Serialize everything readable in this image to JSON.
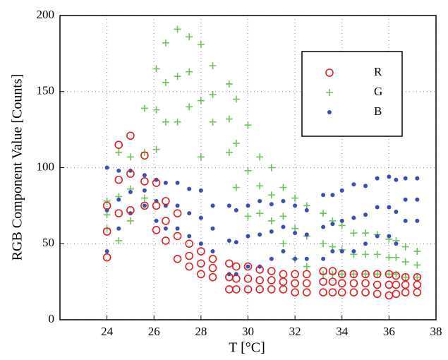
{
  "chart_data": {
    "type": "scatter",
    "x_label": "T [°C]",
    "y_label": "RGB Component Value [Counts]",
    "xlim": [
      22,
      38
    ],
    "xticks": [
      24,
      26,
      28,
      30,
      32,
      34,
      36,
      38
    ],
    "ylim": [
      0,
      200
    ],
    "yticks": [
      0,
      50,
      100,
      150,
      200
    ],
    "grid": true,
    "legend": "upper right",
    "x": [
      24,
      24,
      24,
      24.5,
      24.5,
      24.5,
      25,
      25,
      25,
      25.6,
      25.6,
      25.6,
      26.1,
      26.1,
      26.1,
      26.5,
      26.5,
      26.5,
      27,
      27,
      27,
      27.5,
      27.5,
      27.5,
      28,
      28,
      28,
      28.5,
      28.5,
      28.5,
      29.2,
      29.2,
      29.2,
      29.5,
      29.5,
      29.5,
      30,
      30,
      30,
      30.5,
      30.5,
      30.5,
      31,
      31,
      31,
      31.5,
      31.5,
      31.5,
      32,
      32,
      32,
      32.5,
      32.5,
      32.5,
      33.2,
      33.2,
      33.2,
      33.6,
      33.6,
      33.6,
      34,
      34,
      34,
      34.5,
      34.5,
      34.5,
      35,
      35,
      35,
      35.5,
      35.5,
      35.5,
      36,
      36,
      36,
      36.3,
      36.3,
      36.3,
      36.7,
      36.7,
      36.7,
      37.2,
      37.2,
      37.2
    ],
    "series": [
      {
        "name": "R",
        "color": "#e02020",
        "marker": "circle",
        "values": [
          41,
          58,
          75,
          70,
          92,
          115,
          72,
          96,
          121,
          75,
          91,
          108,
          59,
          75,
          90,
          52,
          65,
          78,
          40,
          55,
          70,
          35,
          42,
          50,
          30,
          37,
          45,
          28,
          34,
          40,
          20,
          28,
          37,
          20,
          27,
          35,
          20,
          27,
          35,
          20,
          26,
          33,
          20,
          26,
          32,
          20,
          25,
          30,
          18,
          24,
          30,
          18,
          24,
          30,
          18,
          25,
          32,
          18,
          25,
          32,
          18,
          24,
          30,
          18,
          24,
          30,
          18,
          24,
          30,
          17,
          23,
          30,
          16,
          23,
          30,
          17,
          23,
          29,
          18,
          23,
          28,
          18,
          23,
          28
        ]
      },
      {
        "name": "G",
        "color": "#6cc45a",
        "marker": "plus",
        "values": [
          60,
          69,
          78,
          52,
          81,
          110,
          65,
          86,
          107,
          80,
          110,
          139,
          112,
          138,
          165,
          130,
          156,
          182,
          130,
          160,
          191,
          140,
          163,
          186,
          107,
          144,
          181,
          130,
          148,
          167,
          110,
          132,
          155,
          87,
          116,
          145,
          68,
          98,
          128,
          70,
          88,
          107,
          65,
          82,
          100,
          50,
          68,
          87,
          40,
          60,
          80,
          35,
          55,
          75,
          30,
          50,
          70,
          30,
          48,
          65,
          30,
          46,
          62,
          30,
          43,
          57,
          30,
          43,
          57,
          30,
          43,
          56,
          30,
          41,
          53,
          30,
          41,
          52,
          28,
          38,
          48,
          28,
          36,
          45
        ]
      },
      {
        "name": "B",
        "color": "#3a4fb4",
        "marker": "dot",
        "values": [
          45,
          72,
          100,
          60,
          79,
          98,
          70,
          84,
          98,
          75,
          85,
          95,
          65,
          78,
          92,
          60,
          75,
          90,
          60,
          75,
          90,
          55,
          70,
          86,
          50,
          67,
          85,
          45,
          60,
          75,
          30,
          52,
          75,
          30,
          51,
          72,
          35,
          55,
          75,
          35,
          56,
          78,
          40,
          58,
          76,
          45,
          61,
          78,
          40,
          57,
          75,
          40,
          56,
          72,
          40,
          61,
          82,
          45,
          63,
          82,
          45,
          65,
          85,
          45,
          67,
          89,
          50,
          69,
          88,
          55,
          74,
          93,
          55,
          74,
          94,
          50,
          71,
          92,
          65,
          79,
          93,
          65,
          79,
          93
        ]
      }
    ]
  }
}
